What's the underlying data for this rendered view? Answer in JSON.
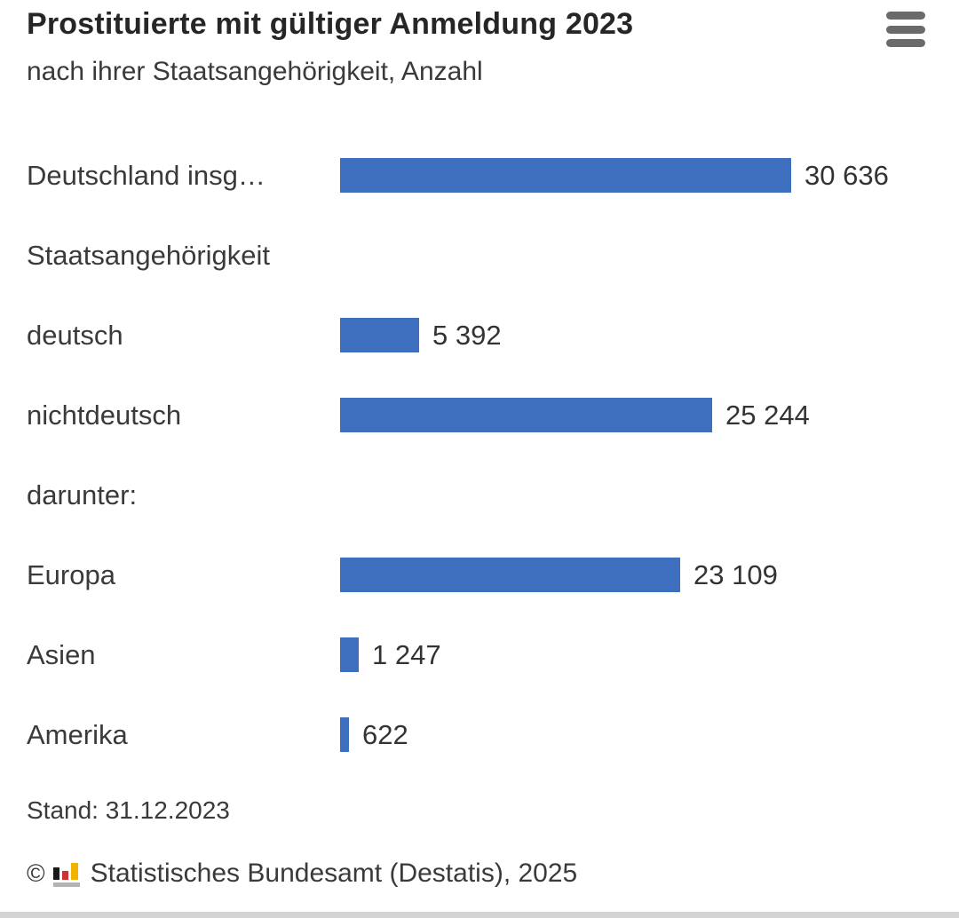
{
  "header": {
    "title": "Prostituierte mit gültiger Anmeldung 2023",
    "subtitle": "nach ihrer Staatsangehörigkeit, Anzahl"
  },
  "chart_data": {
    "type": "bar",
    "orientation": "horizontal",
    "title": "Prostituierte mit gültiger Anmeldung 2023",
    "subtitle": "nach ihrer Staatsangehörigkeit, Anzahl",
    "unit": "Anzahl",
    "max_value": 30636,
    "bar_color": "#3e6ebe",
    "rows": [
      {
        "kind": "bar",
        "label": "Deutschland insg…",
        "value": 30636,
        "value_label": "30 636"
      },
      {
        "kind": "section",
        "label": "Staatsangehörigkeit"
      },
      {
        "kind": "bar",
        "label": "deutsch",
        "value": 5392,
        "value_label": "5 392"
      },
      {
        "kind": "bar",
        "label": "nichtdeutsch",
        "value": 25244,
        "value_label": "25 244"
      },
      {
        "kind": "section",
        "label": "darunter:"
      },
      {
        "kind": "bar",
        "label": "Europa",
        "value": 23109,
        "value_label": "23 109"
      },
      {
        "kind": "bar",
        "label": "Asien",
        "value": 1247,
        "value_label": "1 247"
      },
      {
        "kind": "bar",
        "label": "Amerika",
        "value": 622,
        "value_label": "622"
      }
    ]
  },
  "footer": {
    "stand": "Stand: 31.12.2023",
    "copyright_symbol": "©",
    "source": "Statistisches Bundesamt (Destatis), 2025",
    "logo_colors": {
      "black": "#1a1a1a",
      "red": "#cc3333",
      "gold": "#f0b400",
      "gray": "#b3b3b3"
    }
  },
  "colors": {
    "bar": "#3e6ebe",
    "text": "#3a3a3a",
    "title": "#262626",
    "menu_icon": "#6a6a6a"
  }
}
